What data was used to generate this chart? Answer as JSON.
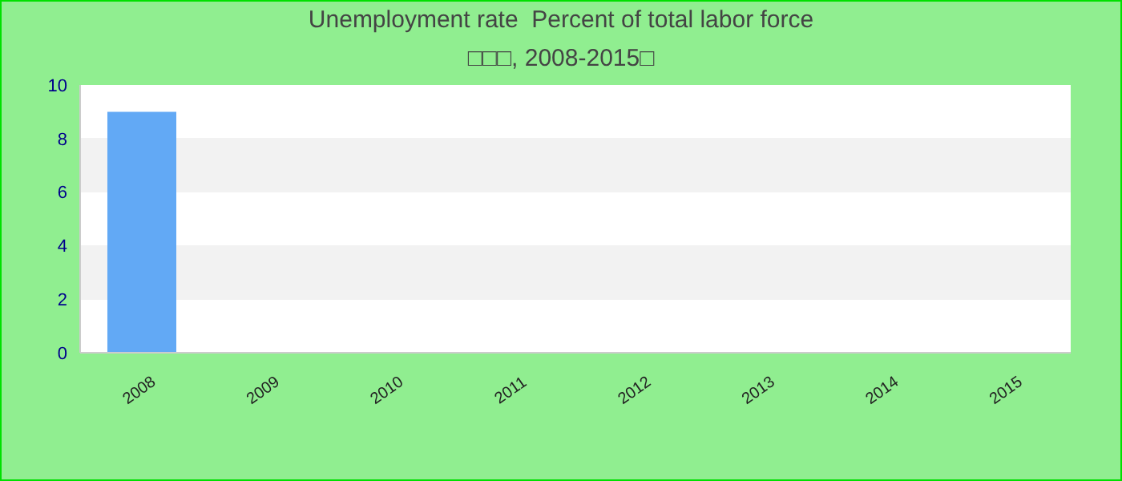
{
  "chart_data": {
    "type": "bar",
    "title": "Unemployment rate  Percent of total labor force",
    "subtitle": "□□□, 2008-2015□",
    "categories": [
      "2008",
      "2009",
      "2010",
      "2011",
      "2012",
      "2013",
      "2014",
      "2015"
    ],
    "values": [
      9,
      null,
      null,
      null,
      null,
      null,
      null,
      null
    ],
    "color": "#62a9f5",
    "ylim": [
      0,
      10
    ],
    "yticks": [
      0,
      2,
      4,
      6,
      8,
      10
    ]
  }
}
